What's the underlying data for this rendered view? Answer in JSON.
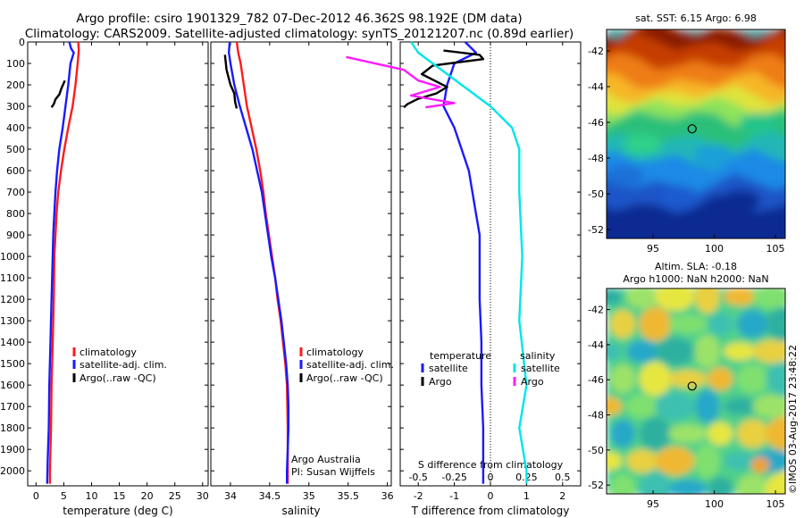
{
  "header": {
    "line1": "Argo profile: csiro 1901329_782 07-Dec-2012 46.362S 98.192E (DM data)",
    "line2": "Climatology: CARS2009. Satellite-adjusted climatology: synTS_20121207.nc (0.89d earlier)"
  },
  "colors": {
    "climatology": "#ff1a1a",
    "satellite": "#1a1aff",
    "argo": "#000000",
    "satellite_s": "#00e6e6",
    "argo_s": "#ff1aff"
  },
  "chart_data": [
    {
      "type": "line",
      "xlabel": "temperature (deg C)",
      "ylabel": "",
      "xlim": [
        -1.5,
        31
      ],
      "ylim": [
        2070,
        0
      ],
      "x_ticks": [
        "0",
        "5",
        "10",
        "15",
        "20",
        "25",
        "30"
      ],
      "y_ticks": [
        "0",
        "100",
        "200",
        "300",
        "400",
        "500",
        "600",
        "700",
        "800",
        "900",
        "1000",
        "1100",
        "1200",
        "1300",
        "1400",
        "1500",
        "1600",
        "1700",
        "1800",
        "1900",
        "2000"
      ],
      "legend": {
        "position": "lower-center",
        "entries": [
          "climatology",
          "satellite-adj. clim.",
          "Argo(..raw -QC)"
        ]
      },
      "series": [
        {
          "name": "climatology",
          "color": "#ff1a1a",
          "values": [
            [
              7.6,
              0
            ],
            [
              7.7,
              40
            ],
            [
              7.5,
              100
            ],
            [
              7.1,
              200
            ],
            [
              6.6,
              300
            ],
            [
              5.8,
              400
            ],
            [
              5.1,
              500
            ],
            [
              4.5,
              600
            ],
            [
              4.0,
              700
            ],
            [
              3.7,
              800
            ],
            [
              3.5,
              900
            ],
            [
              3.3,
              1000
            ],
            [
              3.2,
              1200
            ],
            [
              3.0,
              1400
            ],
            [
              2.8,
              1600
            ],
            [
              2.7,
              1800
            ],
            [
              2.5,
              2000
            ],
            [
              2.5,
              2060
            ]
          ]
        },
        {
          "name": "satellite-adj. clim.",
          "color": "#1a1aff",
          "values": [
            [
              6.0,
              0
            ],
            [
              6.3,
              30
            ],
            [
              6.8,
              50
            ],
            [
              6.2,
              100
            ],
            [
              5.8,
              200
            ],
            [
              5.3,
              300
            ],
            [
              4.8,
              400
            ],
            [
              4.2,
              500
            ],
            [
              3.8,
              600
            ],
            [
              3.5,
              700
            ],
            [
              3.3,
              800
            ],
            [
              3.1,
              900
            ],
            [
              3.0,
              1000
            ],
            [
              2.8,
              1200
            ],
            [
              2.6,
              1400
            ],
            [
              2.4,
              1600
            ],
            [
              2.3,
              1800
            ],
            [
              2.1,
              1950
            ],
            [
              2.0,
              2060
            ]
          ]
        },
        {
          "name": "Argo(..raw -QC)",
          "color": "#000000",
          "values": [
            [
              5.2,
              180
            ],
            [
              4.6,
              215
            ],
            [
              4.2,
              245
            ],
            [
              3.5,
              268
            ],
            [
              3.2,
              290
            ],
            [
              2.8,
              305
            ]
          ]
        }
      ]
    },
    {
      "type": "line",
      "xlabel": "salinity",
      "ylabel": "",
      "xlim": [
        33.75,
        36.05
      ],
      "ylim": [
        2070,
        0
      ],
      "x_ticks": [
        "34",
        "34.5",
        "35",
        "35.5",
        "36"
      ],
      "legend": {
        "position": "lower-center",
        "entries": [
          "climatology",
          "satellite-adj. clim.",
          "Argo(..raw -QC)"
        ]
      },
      "annotations": [
        "Argo Australia",
        "PI: Susan Wijffels"
      ],
      "series": [
        {
          "name": "climatology",
          "color": "#ff1a1a",
          "values": [
            [
              34.08,
              0
            ],
            [
              34.1,
              50
            ],
            [
              34.13,
              100
            ],
            [
              34.17,
              200
            ],
            [
              34.21,
              300
            ],
            [
              34.27,
              400
            ],
            [
              34.33,
              500
            ],
            [
              34.38,
              600
            ],
            [
              34.42,
              700
            ],
            [
              34.45,
              800
            ],
            [
              34.49,
              900
            ],
            [
              34.53,
              1000
            ],
            [
              34.57,
              1100
            ],
            [
              34.6,
              1200
            ],
            [
              34.64,
              1300
            ],
            [
              34.67,
              1400
            ],
            [
              34.7,
              1500
            ],
            [
              34.72,
              1600
            ],
            [
              34.73,
              1800
            ],
            [
              34.73,
              2000
            ],
            [
              34.73,
              2060
            ]
          ]
        },
        {
          "name": "satellite-adj. clim.",
          "color": "#1a1aff",
          "values": [
            [
              33.99,
              0
            ],
            [
              33.98,
              50
            ],
            [
              34.0,
              100
            ],
            [
              34.05,
              200
            ],
            [
              34.12,
              300
            ],
            [
              34.2,
              400
            ],
            [
              34.28,
              500
            ],
            [
              34.34,
              600
            ],
            [
              34.4,
              700
            ],
            [
              34.44,
              800
            ],
            [
              34.48,
              900
            ],
            [
              34.52,
              1000
            ],
            [
              34.57,
              1100
            ],
            [
              34.61,
              1200
            ],
            [
              34.65,
              1300
            ],
            [
              34.68,
              1400
            ],
            [
              34.71,
              1500
            ],
            [
              34.73,
              1600
            ],
            [
              34.74,
              1700
            ],
            [
              34.74,
              1800
            ],
            [
              34.73,
              1900
            ],
            [
              34.72,
              2000
            ],
            [
              34.72,
              2060
            ]
          ]
        },
        {
          "name": "Argo(..raw -QC)",
          "color": "#000000",
          "values": [
            [
              33.93,
              60
            ],
            [
              33.95,
              130
            ],
            [
              34.0,
              200
            ],
            [
              34.05,
              240
            ],
            [
              34.06,
              280
            ],
            [
              34.08,
              310
            ]
          ]
        }
      ]
    },
    {
      "type": "line",
      "xlabel": "T difference from climatology",
      "top_label": "S difference from climatology",
      "ylabel": "",
      "xlim": [
        -2.5,
        2.5
      ],
      "ylim": [
        2070,
        0
      ],
      "x_ticks": [
        "-2",
        "-1",
        "0",
        "1",
        "2"
      ],
      "s_ticks": [
        "-0.5",
        "-0.25",
        "0",
        "0.25",
        "0.5"
      ],
      "legend": {
        "position": "lower-center",
        "temperature_title": "temperature",
        "salinity_title": "salinity",
        "entries": [
          "satellite",
          "Argo",
          "satellite",
          "Argo"
        ]
      },
      "series": [
        {
          "name": "temperature satellite",
          "color": "#1a1aff",
          "values": [
            [
              -0.7,
              0
            ],
            [
              -0.4,
              50
            ],
            [
              -1.0,
              100
            ],
            [
              -1.2,
              200
            ],
            [
              -1.3,
              300
            ],
            [
              -1.0,
              400
            ],
            [
              -0.8,
              500
            ],
            [
              -0.6,
              600
            ],
            [
              -0.5,
              700
            ],
            [
              -0.4,
              800
            ],
            [
              -0.3,
              900
            ],
            [
              -0.3,
              1000
            ],
            [
              -0.3,
              1200
            ],
            [
              -0.25,
              1400
            ],
            [
              -0.25,
              1600
            ],
            [
              -0.2,
              1800
            ],
            [
              -0.2,
              2000
            ],
            [
              -0.2,
              2060
            ]
          ]
        },
        {
          "name": "temperature Argo",
          "color": "#000000",
          "values": [
            [
              -1.3,
              40
            ],
            [
              -0.3,
              60
            ],
            [
              -0.2,
              80
            ],
            [
              -1.6,
              110
            ],
            [
              -1.9,
              150
            ],
            [
              -1.2,
              210
            ],
            [
              -1.5,
              240
            ],
            [
              -2.0,
              265
            ],
            [
              -2.3,
              290
            ],
            [
              -2.4,
              305
            ]
          ]
        },
        {
          "name": "salinity satellite",
          "color": "#00e6e6",
          "values": [
            [
              -0.55,
              0
            ],
            [
              -0.5,
              50
            ],
            [
              -0.4,
              100
            ],
            [
              -0.2,
              200
            ],
            [
              0.0,
              300
            ],
            [
              0.15,
              400
            ],
            [
              0.2,
              500
            ],
            [
              0.2,
              700
            ],
            [
              0.22,
              1000
            ],
            [
              0.2,
              1300
            ],
            [
              0.25,
              1600
            ],
            [
              0.2,
              1800
            ],
            [
              0.25,
              2000
            ],
            [
              0.25,
              2060
            ]
          ]
        },
        {
          "name": "salinity Argo",
          "color": "#ff1aff",
          "values": [
            [
              -1.0,
              70
            ],
            [
              -0.6,
              130
            ],
            [
              -0.5,
              180
            ],
            [
              -0.35,
              210
            ],
            [
              -0.55,
              250
            ],
            [
              -0.25,
              285
            ],
            [
              -0.45,
              305
            ]
          ]
        }
      ]
    },
    {
      "type": "heatmap",
      "title": "sat. SST: 6.15 Argo: 6.98",
      "x_ticks": [
        "95",
        "100",
        "105"
      ],
      "y_ticks": [
        "-42",
        "-44",
        "-46",
        "-48",
        "-50",
        "-52"
      ],
      "marker": {
        "lon": 98.19,
        "lat": -46.36
      }
    },
    {
      "type": "heatmap",
      "title": "Altim. SLA: -0.18",
      "subtitle": "Argo h1000: NaN h2000: NaN",
      "x_ticks": [
        "95",
        "100",
        "105"
      ],
      "y_ticks": [
        "-42",
        "-44",
        "-46",
        "-48",
        "-50",
        "-52"
      ],
      "marker": {
        "lon": 98.19,
        "lat": -46.36
      }
    }
  ],
  "side_caption": "©IMOS 03-Aug-2017 23:48:22"
}
